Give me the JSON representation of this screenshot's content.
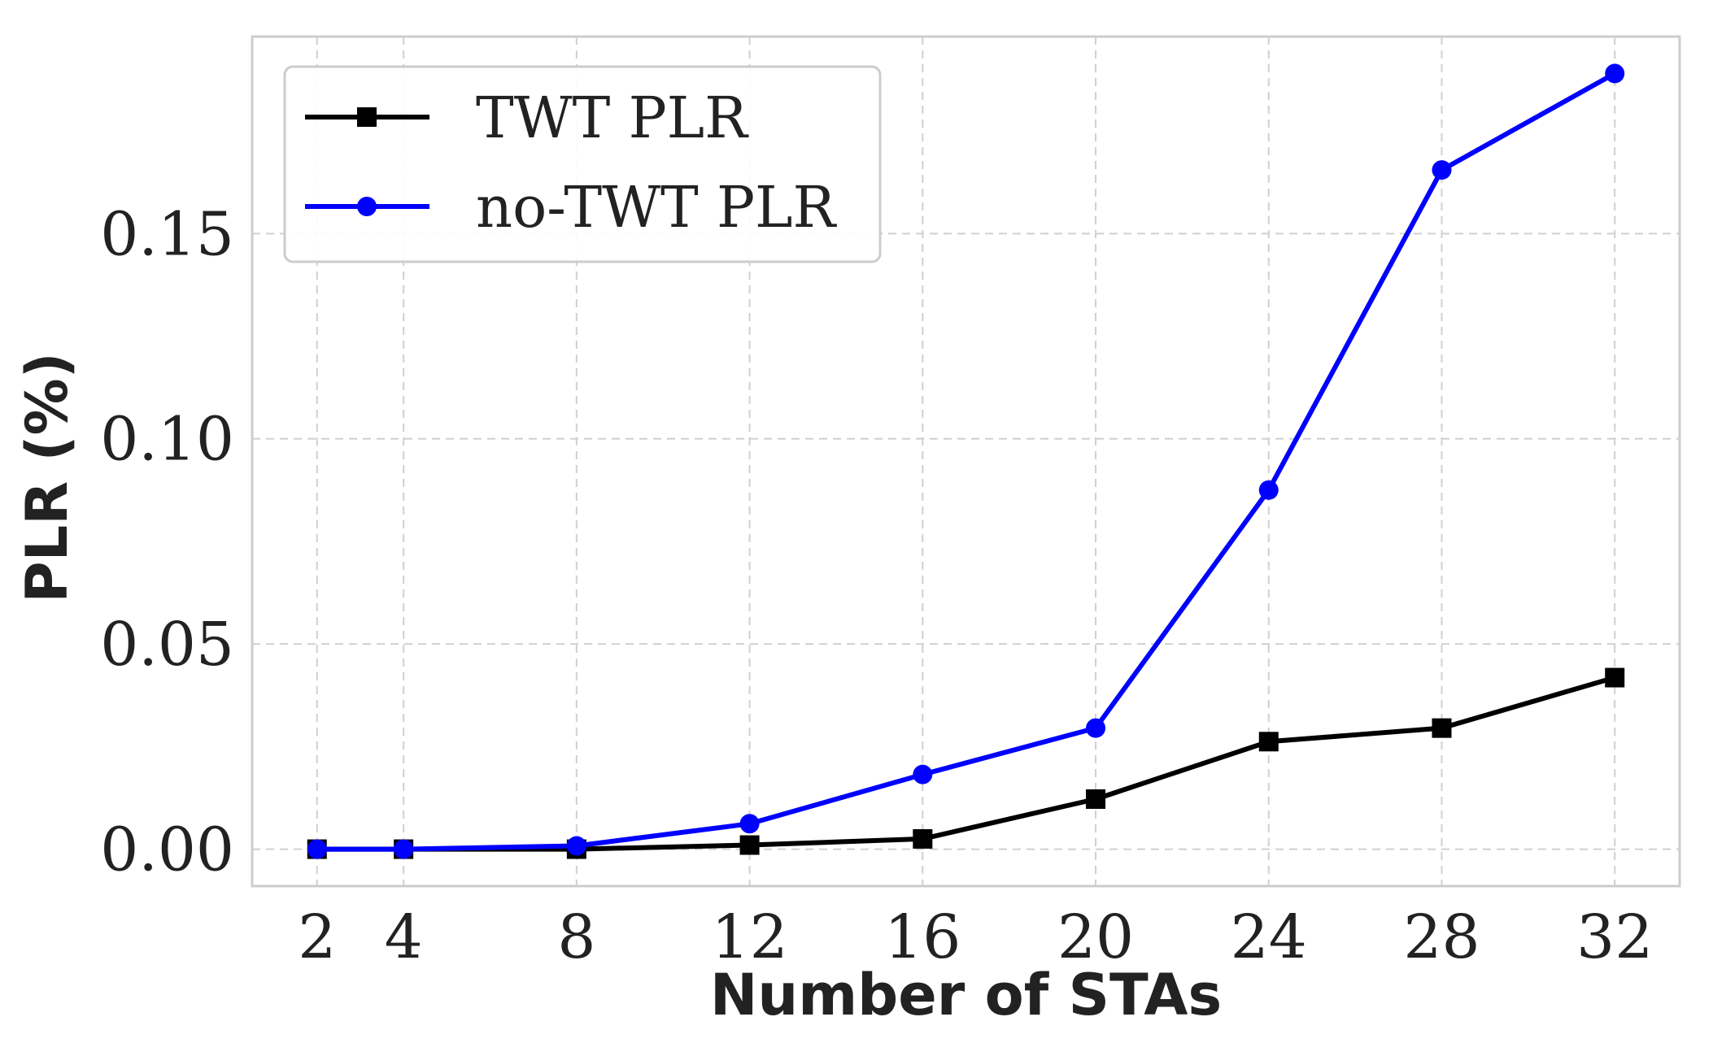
{
  "chart_data": {
    "type": "line",
    "xlabel": "Number of STAs",
    "ylabel": "PLR (%)",
    "x": [
      2,
      4,
      8,
      12,
      16,
      20,
      24,
      28,
      32
    ],
    "x_tick_labels": [
      "2",
      "4",
      "8",
      "12",
      "16",
      "20",
      "24",
      "28",
      "32"
    ],
    "y_ticks": [
      0.0,
      0.05,
      0.1,
      0.15
    ],
    "y_tick_labels": [
      "0.00",
      "0.05",
      "0.10",
      "0.15"
    ],
    "xlim": [
      0.5,
      33.5
    ],
    "ylim": [
      -0.009,
      0.198
    ],
    "grid": true,
    "legend_position": "top-left",
    "series": [
      {
        "name": "TWT PLR",
        "color": "#000000",
        "marker": "square",
        "values": [
          0.0,
          0.0,
          0.0,
          0.001,
          0.0025,
          0.0122,
          0.0262,
          0.0295,
          0.0418
        ]
      },
      {
        "name": "no-TWT PLR",
        "color": "#0000ff",
        "marker": "circle",
        "values": [
          0.0,
          0.0,
          0.0008,
          0.0062,
          0.0182,
          0.0295,
          0.0875,
          0.1655,
          0.189
        ]
      }
    ]
  }
}
